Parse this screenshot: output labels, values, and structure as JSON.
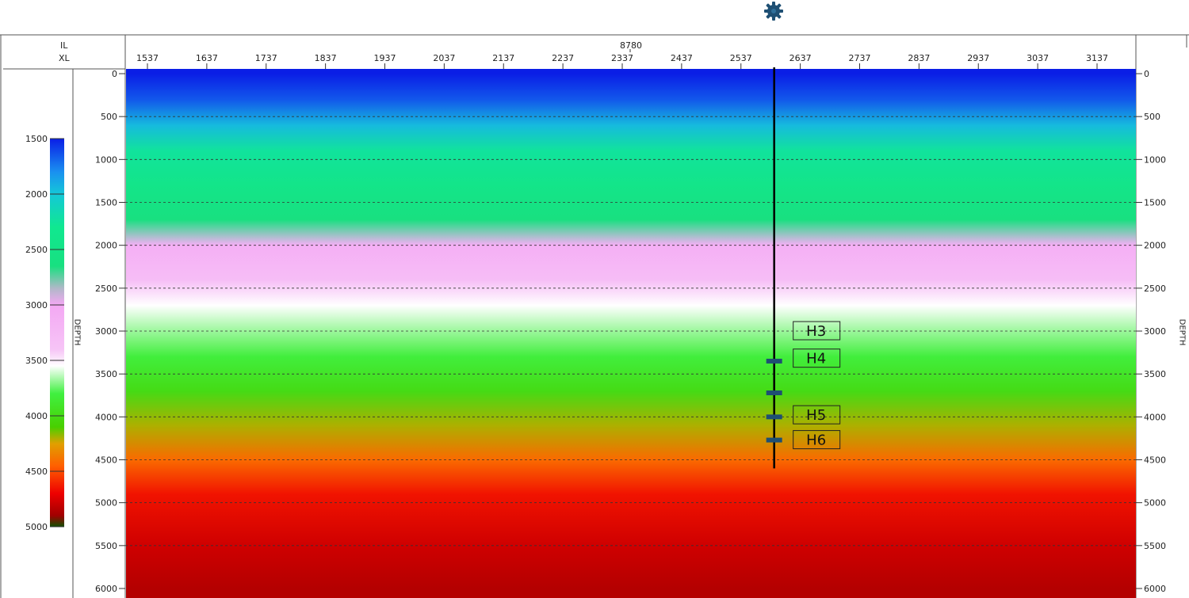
{
  "app": {
    "well_icon": "gear-icon"
  },
  "header": {
    "il_label": "IL",
    "xl_label": "XL",
    "inline_number": "8780"
  },
  "chart_data": {
    "type": "heatmap",
    "xlabel": "XL",
    "ylabel": "DEPTH",
    "inline": 8780,
    "x_ticks": [
      1537,
      1637,
      1737,
      1837,
      1937,
      2037,
      2137,
      2237,
      2337,
      2437,
      2537,
      2637,
      2737,
      2837,
      2937,
      3037,
      3137
    ],
    "y_ticks": [
      0,
      500,
      1000,
      1500,
      2000,
      2500,
      3000,
      3500,
      4000,
      4500,
      5000,
      5500,
      6000
    ],
    "xlim": [
      1500,
      3200
    ],
    "ylim": [
      0,
      6000
    ],
    "grid": "horizontal dashed",
    "colorbar": {
      "ticks": [
        1500,
        2000,
        2500,
        3000,
        3500,
        4000,
        4500,
        5000
      ],
      "range": [
        1500,
        5000
      ],
      "stops": [
        {
          "value": 1500,
          "color": "#0a1ee6"
        },
        {
          "value": 1800,
          "color": "#1a90f0"
        },
        {
          "value": 2000,
          "color": "#14c8d8"
        },
        {
          "value": 2300,
          "color": "#10e890"
        },
        {
          "value": 2650,
          "color": "#18e080"
        },
        {
          "value": 2850,
          "color": "#b0b8c8"
        },
        {
          "value": 3000,
          "color": "#f4a8f4"
        },
        {
          "value": 3400,
          "color": "#f6c4f6"
        },
        {
          "value": 3550,
          "color": "#ffffff"
        },
        {
          "value": 3800,
          "color": "#40f040"
        },
        {
          "value": 4100,
          "color": "#48d000"
        },
        {
          "value": 4250,
          "color": "#e0a000"
        },
        {
          "value": 4450,
          "color": "#ff6000"
        },
        {
          "value": 4700,
          "color": "#ee0000"
        },
        {
          "value": 4900,
          "color": "#a00000"
        },
        {
          "value": 5000,
          "color": "#105000"
        }
      ]
    },
    "velocity_profile": [
      {
        "depth": 0,
        "value": 1500
      },
      {
        "depth": 300,
        "value": 1650
      },
      {
        "depth": 600,
        "value": 1950
      },
      {
        "depth": 900,
        "value": 2250
      },
      {
        "depth": 1300,
        "value": 2450
      },
      {
        "depth": 1700,
        "value": 2650
      },
      {
        "depth": 2000,
        "value": 3100
      },
      {
        "depth": 2400,
        "value": 3300
      },
      {
        "depth": 2700,
        "value": 3550
      },
      {
        "depth": 3000,
        "value": 3680
      },
      {
        "depth": 3300,
        "value": 3820
      },
      {
        "depth": 3700,
        "value": 4000
      },
      {
        "depth": 4100,
        "value": 4200
      },
      {
        "depth": 4500,
        "value": 4420
      },
      {
        "depth": 4900,
        "value": 4650
      },
      {
        "depth": 5500,
        "value": 4780
      },
      {
        "depth": 6000,
        "value": 4850
      }
    ],
    "well": {
      "xl": 2593,
      "top_depth": 0,
      "bottom_depth": 4600,
      "markers": [
        {
          "depth": 3350
        },
        {
          "depth": 3720
        },
        {
          "depth": 4000
        },
        {
          "depth": 4270
        }
      ],
      "horizons": [
        {
          "name": "H3",
          "depth": 3000
        },
        {
          "name": "H4",
          "depth": 3320
        },
        {
          "name": "H5",
          "depth": 3980
        },
        {
          "name": "H6",
          "depth": 4270
        }
      ]
    }
  }
}
